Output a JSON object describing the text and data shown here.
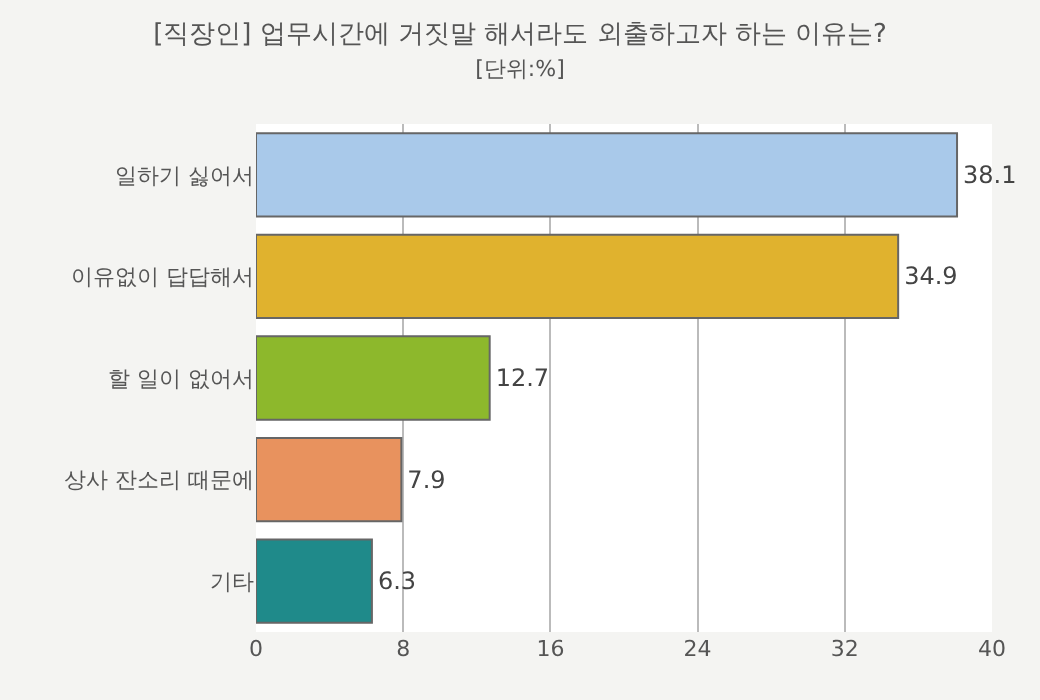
{
  "chart_data": {
    "type": "bar",
    "orientation": "horizontal",
    "title": "[직장인] 업무시간에 거짓말 해서라도 외출하고자 하는 이유는?",
    "subtitle": "[단위:%]",
    "categories": [
      "일하기 싫어서",
      "이유없이 답답해서",
      "할 일이 없어서",
      "상사 잔소리 때문에",
      "기타"
    ],
    "values": [
      38.1,
      34.9,
      12.7,
      7.9,
      6.3
    ],
    "colors": [
      "#a9c9ea",
      "#e0b22e",
      "#8db82c",
      "#e8925e",
      "#1f8a8a"
    ],
    "xlim": [
      0,
      40
    ],
    "xticks": [
      0,
      8,
      16,
      24,
      32,
      40
    ],
    "grid": "x",
    "data_labels": true
  }
}
